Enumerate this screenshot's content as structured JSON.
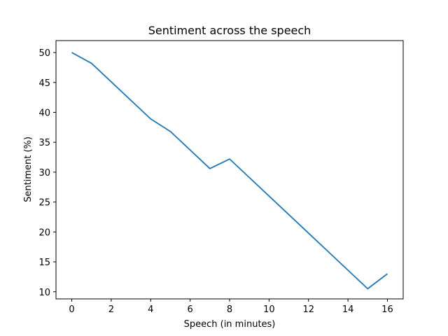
{
  "chart_data": {
    "type": "line",
    "title": "Sentiment across the speech",
    "xlabel": "Speech (in minutes)",
    "ylabel": "Sentiment (%)",
    "xlim": [
      -0.8,
      16.8
    ],
    "ylim": [
      8.8,
      52.0
    ],
    "xticks": [
      0,
      2,
      4,
      6,
      8,
      10,
      12,
      14,
      16
    ],
    "yticks": [
      10,
      15,
      20,
      25,
      30,
      35,
      40,
      45,
      50
    ],
    "grid": false,
    "series": [
      {
        "color": "#1f77b4",
        "x": [
          0,
          1,
          2,
          3,
          4,
          5,
          6,
          7,
          8,
          9,
          10,
          11,
          12,
          13,
          14,
          15,
          16
        ],
        "y": [
          50.0,
          48.2,
          45.1,
          42.0,
          38.9,
          36.8,
          33.7,
          30.6,
          32.2,
          29.1,
          26.0,
          22.9,
          19.8,
          16.7,
          13.6,
          10.5,
          13.0
        ]
      }
    ]
  }
}
